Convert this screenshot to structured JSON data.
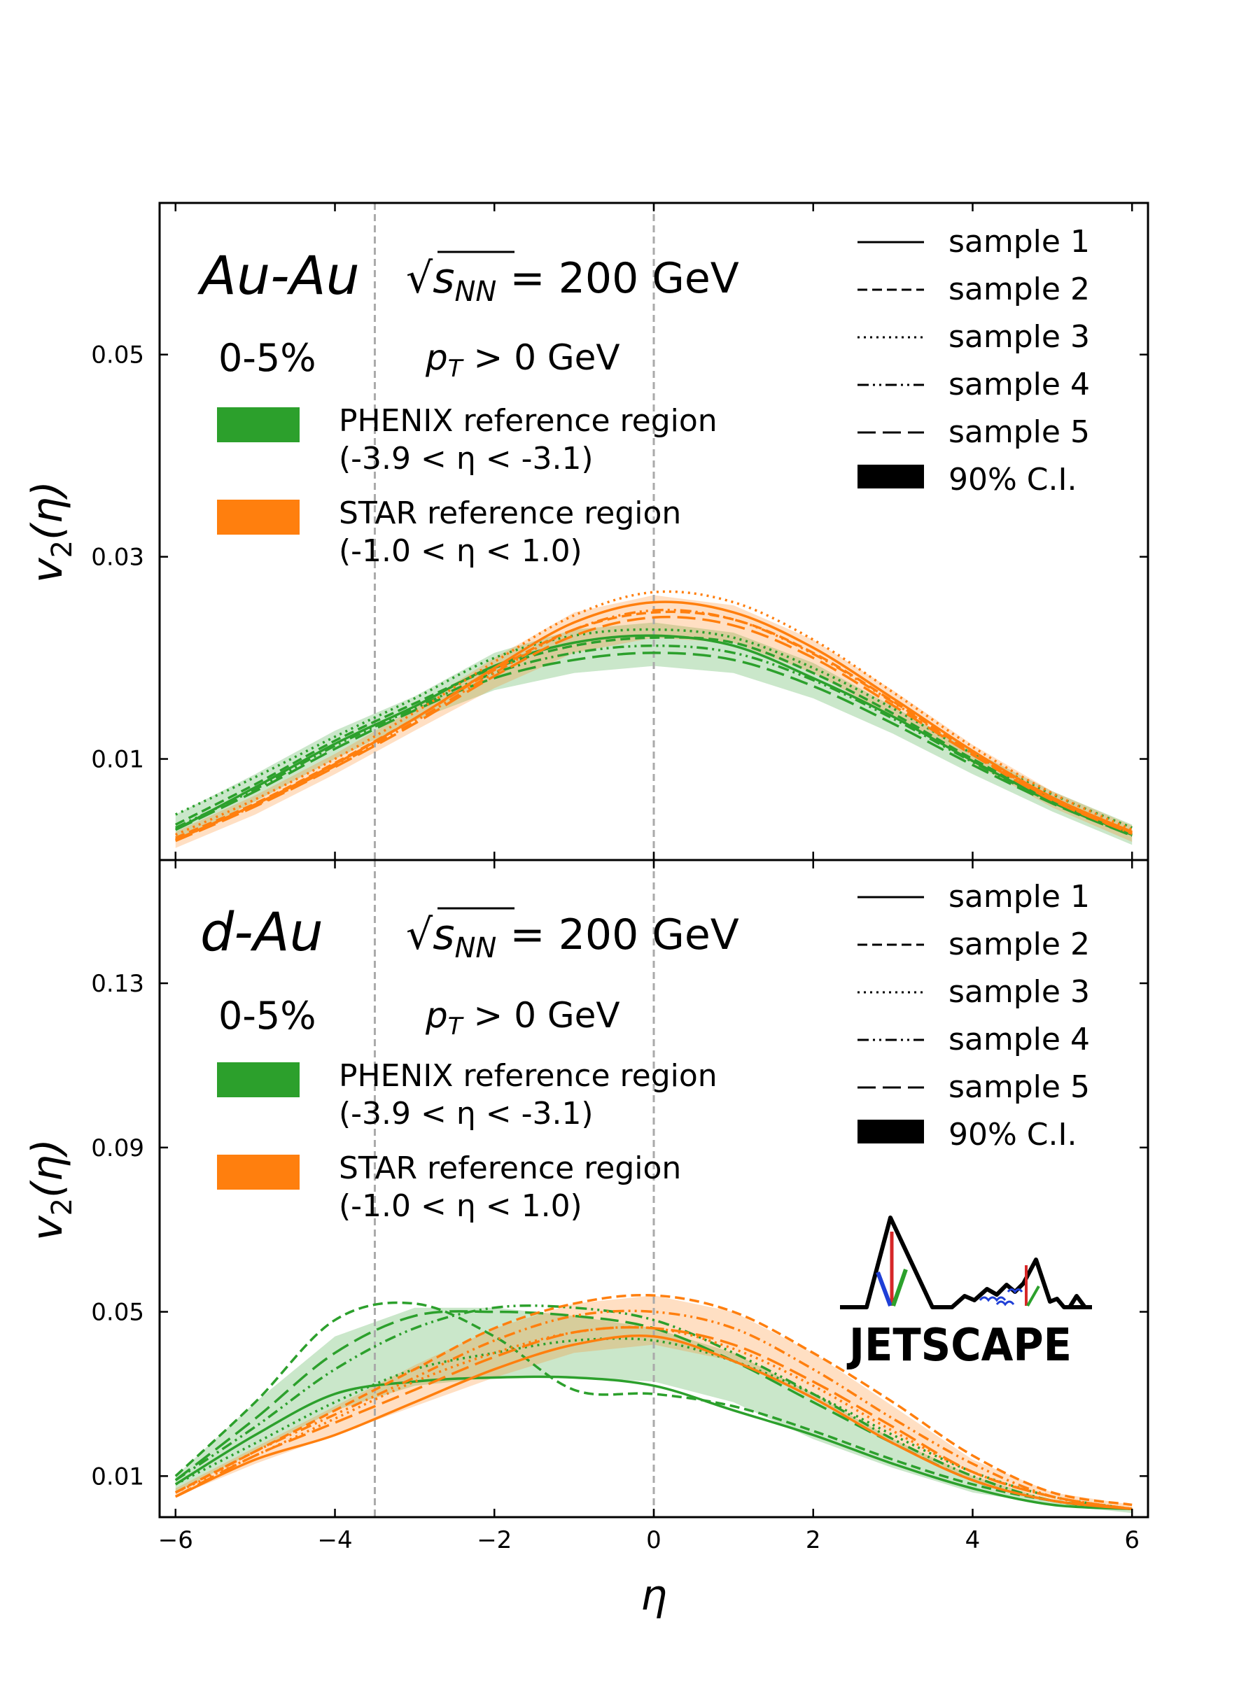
{
  "colors": {
    "phenix": "#2ca02c",
    "star": "#ff7f0e",
    "ci": "#000000",
    "logo_red": "#d62728",
    "logo_green": "#2ca02c",
    "logo_blue": "#1f3fd6"
  },
  "xaxis": {
    "label": "η",
    "ticks": [
      "−6",
      "−4",
      "−2",
      "0",
      "2",
      "4",
      "6"
    ],
    "lim": [
      -6.2,
      6.2
    ],
    "ref_lines": [
      -3.5,
      0
    ]
  },
  "legend": {
    "samples": [
      "sample 1",
      "sample 2",
      "sample 3",
      "sample 4",
      "sample 5"
    ],
    "ci": "90% C.I."
  },
  "logo": {
    "text": "JETSCAPE",
    "icon": "jetscape-mountains-icon"
  },
  "chart_data": [
    {
      "type": "line",
      "panel": "top",
      "title_system": "Au-Au",
      "title_energy": "√s_NN = 200 GeV",
      "centrality": "0-5%",
      "pt_cut": "p_T > 0 GeV",
      "ylabel": "v2(η)",
      "ylim": [
        0.0,
        0.065
      ],
      "yticks": [
        "0.01",
        "0.03",
        "0.05"
      ],
      "ytick_values": [
        0.01,
        0.03,
        0.05
      ],
      "references": [
        {
          "name": "PHENIX reference region",
          "range": "(-3.9 < η < -3.1)"
        },
        {
          "name": "STAR reference region",
          "range": "(-1.0 < η < 1.0)"
        }
      ],
      "x": [
        -6,
        -5,
        -4,
        -3,
        -2,
        -1,
        0,
        1,
        2,
        3,
        4,
        5,
        6
      ],
      "series": [
        {
          "ref": "PHENIX",
          "style": "solid",
          "values": [
            0.003,
            0.0072,
            0.0115,
            0.0152,
            0.0192,
            0.0215,
            0.0222,
            0.0212,
            0.018,
            0.0142,
            0.0098,
            0.0058,
            0.0025
          ]
        },
        {
          "ref": "PHENIX",
          "style": "dashed",
          "values": [
            0.0035,
            0.0075,
            0.0118,
            0.0155,
            0.019,
            0.0212,
            0.022,
            0.0215,
            0.0185,
            0.0145,
            0.01,
            0.006,
            0.0028
          ]
        },
        {
          "ref": "PHENIX",
          "style": "dotted",
          "values": [
            0.0045,
            0.0082,
            0.0122,
            0.016,
            0.02,
            0.0222,
            0.0228,
            0.022,
            0.019,
            0.015,
            0.0105,
            0.0065,
            0.0032
          ]
        },
        {
          "ref": "PHENIX",
          "style": "dashdot",
          "values": [
            0.0032,
            0.007,
            0.0113,
            0.015,
            0.0185,
            0.0205,
            0.0212,
            0.0205,
            0.0178,
            0.014,
            0.0097,
            0.0057,
            0.0024
          ]
        },
        {
          "ref": "PHENIX",
          "style": "longdash",
          "values": [
            0.003,
            0.0068,
            0.011,
            0.0148,
            0.018,
            0.0198,
            0.0205,
            0.0198,
            0.0172,
            0.0135,
            0.0094,
            0.0056,
            0.0024
          ]
        },
        {
          "ref": "STAR",
          "style": "solid",
          "values": [
            0.002,
            0.0055,
            0.0095,
            0.014,
            0.019,
            0.0235,
            0.0255,
            0.0245,
            0.021,
            0.016,
            0.0108,
            0.0062,
            0.0028
          ]
        },
        {
          "ref": "STAR",
          "style": "dashed",
          "values": [
            0.0022,
            0.0056,
            0.0096,
            0.014,
            0.0188,
            0.0228,
            0.0245,
            0.0238,
            0.0205,
            0.0157,
            0.0106,
            0.0061,
            0.0027
          ]
        },
        {
          "ref": "STAR",
          "style": "dotted",
          "values": [
            0.0025,
            0.006,
            0.01,
            0.0146,
            0.0196,
            0.0242,
            0.0265,
            0.0255,
            0.0218,
            0.0166,
            0.0112,
            0.0066,
            0.003
          ]
        },
        {
          "ref": "STAR",
          "style": "dashdot",
          "values": [
            0.002,
            0.0054,
            0.0093,
            0.0137,
            0.0185,
            0.0228,
            0.0247,
            0.0238,
            0.0204,
            0.0156,
            0.0105,
            0.006,
            0.0026
          ]
        },
        {
          "ref": "STAR",
          "style": "longdash",
          "values": [
            0.0019,
            0.0053,
            0.0092,
            0.0135,
            0.0182,
            0.0222,
            0.024,
            0.0232,
            0.02,
            0.0153,
            0.0104,
            0.0059,
            0.0026
          ]
        }
      ],
      "bands": [
        {
          "ref": "PHENIX",
          "lower": [
            0.0018,
            0.0058,
            0.01,
            0.0138,
            0.0168,
            0.0185,
            0.0192,
            0.0185,
            0.016,
            0.0125,
            0.0085,
            0.0048,
            0.0015
          ],
          "upper": [
            0.0045,
            0.0085,
            0.0128,
            0.0162,
            0.0205,
            0.0228,
            0.0235,
            0.0225,
            0.0195,
            0.0152,
            0.0108,
            0.0068,
            0.0035
          ]
        },
        {
          "ref": "STAR",
          "lower": [
            0.0012,
            0.0045,
            0.0085,
            0.0128,
            0.017,
            0.0205,
            0.022,
            0.0215,
            0.0185,
            0.0142,
            0.0096,
            0.0052,
            0.0018
          ],
          "upper": [
            0.0028,
            0.0064,
            0.0105,
            0.015,
            0.02,
            0.0245,
            0.0262,
            0.0252,
            0.0218,
            0.0168,
            0.0114,
            0.0068,
            0.0034
          ]
        }
      ]
    },
    {
      "type": "line",
      "panel": "bottom",
      "title_system": "d-Au",
      "title_energy": "√s_NN = 200 GeV",
      "centrality": "0-5%",
      "pt_cut": "p_T > 0 GeV",
      "ylabel": "v2(η)",
      "ylim": [
        0.0,
        0.16
      ],
      "yticks": [
        "0.01",
        "0.05",
        "0.09",
        "0.13"
      ],
      "ytick_values": [
        0.01,
        0.05,
        0.09,
        0.13
      ],
      "references": [
        {
          "name": "PHENIX reference region",
          "range": "(-3.9 < η < -3.1)"
        },
        {
          "name": "STAR reference region",
          "range": "(-1.0 < η < 1.0)"
        }
      ],
      "x": [
        -6,
        -5,
        -4,
        -3,
        -2,
        -1,
        0,
        1,
        2,
        3,
        4,
        5,
        6
      ],
      "series": [
        {
          "ref": "PHENIX",
          "style": "solid",
          "values": [
            0.008,
            0.02,
            0.03,
            0.033,
            0.034,
            0.034,
            0.032,
            0.026,
            0.02,
            0.013,
            0.007,
            0.003,
            0.002
          ]
        },
        {
          "ref": "PHENIX",
          "style": "dashed",
          "values": [
            0.01,
            0.028,
            0.048,
            0.052,
            0.044,
            0.031,
            0.03,
            0.027,
            0.021,
            0.014,
            0.008,
            0.004,
            0.002
          ]
        },
        {
          "ref": "PHENIX",
          "style": "dotted",
          "values": [
            0.008,
            0.018,
            0.028,
            0.036,
            0.04,
            0.043,
            0.043,
            0.038,
            0.03,
            0.02,
            0.011,
            0.005,
            0.002
          ]
        },
        {
          "ref": "PHENIX",
          "style": "dashdot",
          "values": [
            0.009,
            0.022,
            0.036,
            0.046,
            0.051,
            0.051,
            0.048,
            0.04,
            0.03,
            0.019,
            0.01,
            0.004,
            0.002
          ]
        },
        {
          "ref": "PHENIX",
          "style": "longdash",
          "values": [
            0.009,
            0.024,
            0.04,
            0.049,
            0.05,
            0.049,
            0.046,
            0.038,
            0.028,
            0.018,
            0.009,
            0.004,
            0.002
          ]
        },
        {
          "ref": "STAR",
          "style": "solid",
          "values": [
            0.005,
            0.014,
            0.02,
            0.028,
            0.036,
            0.042,
            0.044,
            0.038,
            0.029,
            0.018,
            0.009,
            0.004,
            0.002
          ]
        },
        {
          "ref": "STAR",
          "style": "dashed",
          "values": [
            0.006,
            0.016,
            0.026,
            0.036,
            0.046,
            0.052,
            0.054,
            0.05,
            0.04,
            0.028,
            0.015,
            0.006,
            0.003
          ]
        },
        {
          "ref": "STAR",
          "style": "dotted",
          "values": [
            0.006,
            0.015,
            0.024,
            0.033,
            0.04,
            0.045,
            0.046,
            0.041,
            0.032,
            0.021,
            0.011,
            0.005,
            0.002
          ]
        },
        {
          "ref": "STAR",
          "style": "dashdot",
          "values": [
            0.006,
            0.016,
            0.025,
            0.034,
            0.043,
            0.049,
            0.05,
            0.046,
            0.036,
            0.024,
            0.013,
            0.005,
            0.002
          ]
        },
        {
          "ref": "STAR",
          "style": "longdash",
          "values": [
            0.005,
            0.015,
            0.023,
            0.031,
            0.039,
            0.045,
            0.046,
            0.042,
            0.033,
            0.022,
            0.011,
            0.005,
            0.002
          ]
        }
      ],
      "bands": [
        {
          "ref": "PHENIX",
          "lower": [
            0.006,
            0.016,
            0.026,
            0.032,
            0.034,
            0.034,
            0.033,
            0.028,
            0.019,
            0.012,
            0.006,
            0.003,
            0.001
          ],
          "upper": [
            0.01,
            0.028,
            0.044,
            0.051,
            0.051,
            0.049,
            0.046,
            0.04,
            0.03,
            0.019,
            0.01,
            0.004,
            0.002
          ]
        },
        {
          "ref": "STAR",
          "lower": [
            0.005,
            0.013,
            0.02,
            0.027,
            0.034,
            0.04,
            0.042,
            0.038,
            0.029,
            0.018,
            0.009,
            0.004,
            0.002
          ],
          "upper": [
            0.007,
            0.017,
            0.027,
            0.037,
            0.046,
            0.052,
            0.054,
            0.05,
            0.04,
            0.027,
            0.014,
            0.006,
            0.003
          ]
        }
      ]
    }
  ]
}
